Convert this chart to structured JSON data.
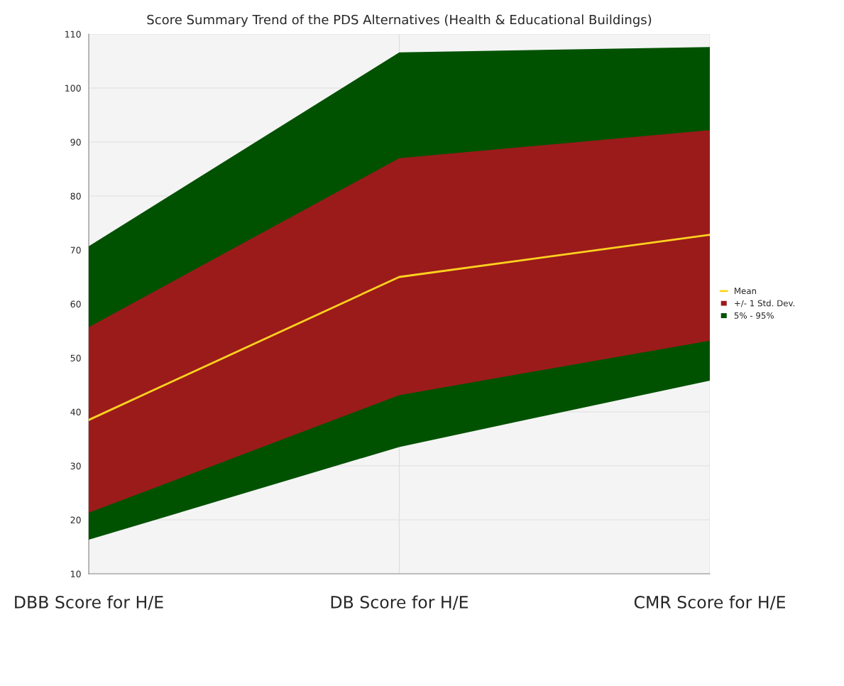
{
  "chart_data": {
    "type": "line",
    "title": "Score Summary Trend of the PDS Alternatives (Health & Educational Buildings)",
    "categories": [
      "DBB Score for H/E",
      "DB Score for H/E",
      "CMR Score for H/E"
    ],
    "series": [
      {
        "name": "Mean",
        "color": "#ffd21f",
        "values": [
          38.5,
          65.0,
          72.8
        ]
      },
      {
        "name": "+/- 1 Std. Dev.",
        "color": "#9b1b1b",
        "values": [
          null,
          null,
          null
        ],
        "lower": [
          21.3,
          43.1,
          53.2
        ],
        "upper": [
          55.7,
          87.0,
          92.2
        ]
      },
      {
        "name": "5% - 95%",
        "color": "#005200",
        "values": [
          null,
          null,
          null
        ],
        "lower": [
          16.3,
          33.5,
          45.8
        ],
        "upper": [
          70.7,
          106.6,
          107.6
        ]
      }
    ],
    "ylim": [
      10,
      110
    ],
    "yticks": [
      10,
      20,
      30,
      40,
      50,
      60,
      70,
      80,
      90,
      100,
      110
    ],
    "grid": true,
    "legend": "right"
  }
}
